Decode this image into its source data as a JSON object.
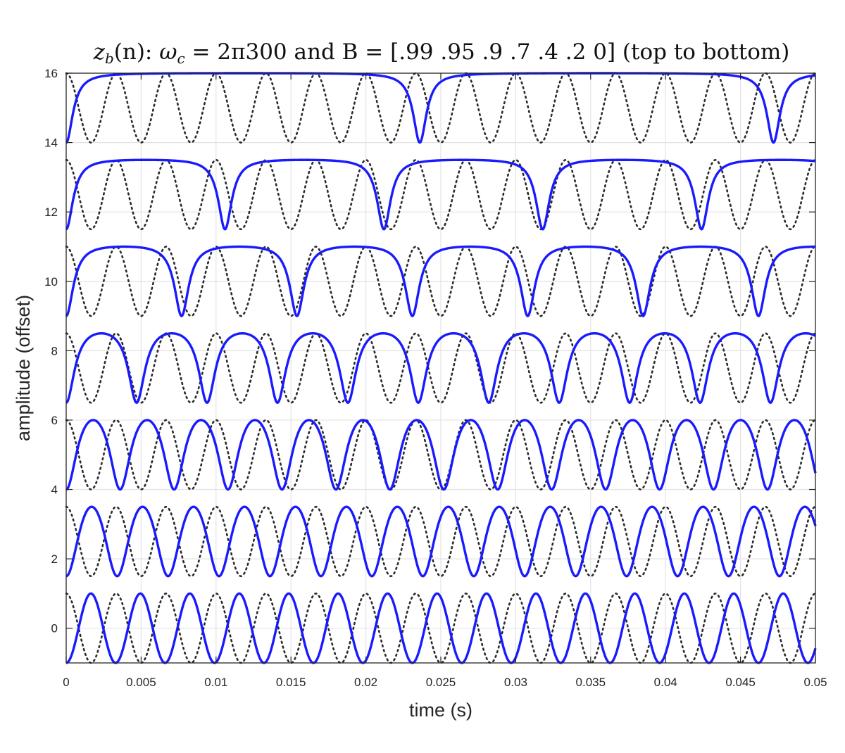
{
  "chart_data": {
    "type": "line",
    "title": {
      "z": "z",
      "z_sub": "b",
      "z_arg": "(n): ",
      "omega": "ω",
      "omega_sub": "c",
      "rest": " = 2π300 and B = [.99 .95 .9 .7 .4 .2 0] (top to bottom)"
    },
    "xlabel": "time (s)",
    "ylabel": "amplitude (offset)",
    "xlim": [
      0,
      0.05
    ],
    "ylim": [
      -1,
      16
    ],
    "xticks": [
      0,
      0.005,
      0.01,
      0.015,
      0.02,
      0.025,
      0.03,
      0.035,
      0.04,
      0.045,
      0.05
    ],
    "xtick_labels": [
      "0",
      "0.005",
      "0.01",
      "0.015",
      "0.02",
      "0.025",
      "0.03",
      "0.035",
      "0.04",
      "0.045",
      "0.05"
    ],
    "yticks": [
      0,
      2,
      4,
      6,
      8,
      10,
      12,
      14,
      16
    ],
    "ytick_labels": [
      "0",
      "2",
      "4",
      "6",
      "8",
      "10",
      "12",
      "14",
      "16"
    ],
    "grid": true,
    "legend": "none",
    "carrier_frequency_hz": 300,
    "series": [
      {
        "B": 0.99,
        "offset": 15,
        "peaks_x": [
          0,
          0.0236,
          0.0472
        ]
      },
      {
        "B": 0.95,
        "offset": 12.5,
        "peaks_x": [
          0,
          0.0106,
          0.0213,
          0.0319,
          0.0426
        ]
      },
      {
        "B": 0.9,
        "offset": 10,
        "peaks_x": [
          0,
          0.0077,
          0.0153,
          0.023,
          0.0307,
          0.0383,
          0.046
        ]
      },
      {
        "B": 0.7,
        "offset": 7.5,
        "peaks_x": [
          0,
          0.0047,
          0.0093,
          0.014,
          0.0186,
          0.0233,
          0.028,
          0.0326,
          0.0373,
          0.042,
          0.0466
        ]
      },
      {
        "B": 0.4,
        "offset": 5,
        "peaks_x": [
          0,
          0.0036,
          0.0071,
          0.0107,
          0.0142,
          0.0178,
          0.0213,
          0.0249,
          0.0284,
          0.032,
          0.0355,
          0.0391,
          0.0426,
          0.0462
        ]
      },
      {
        "B": 0.2,
        "offset": 2.5,
        "peaks_x": [
          0,
          0.0034,
          0.0068,
          0.0103,
          0.0137,
          0.0171,
          0.0205,
          0.024,
          0.0274,
          0.0308,
          0.0342,
          0.0376,
          0.0411,
          0.0445
        ]
      },
      {
        "B": 0,
        "offset": 0,
        "peaks_x": [
          0,
          0.0033,
          0.0067,
          0.01,
          0.0133,
          0.0167,
          0.02,
          0.0233,
          0.0267,
          0.03,
          0.0333,
          0.0367,
          0.04,
          0.0433,
          0.0467,
          0.05
        ]
      }
    ],
    "colors": {
      "signal": "#1a1aff",
      "reference": "#2b2b2b",
      "grid": "#e3e3e3"
    }
  }
}
